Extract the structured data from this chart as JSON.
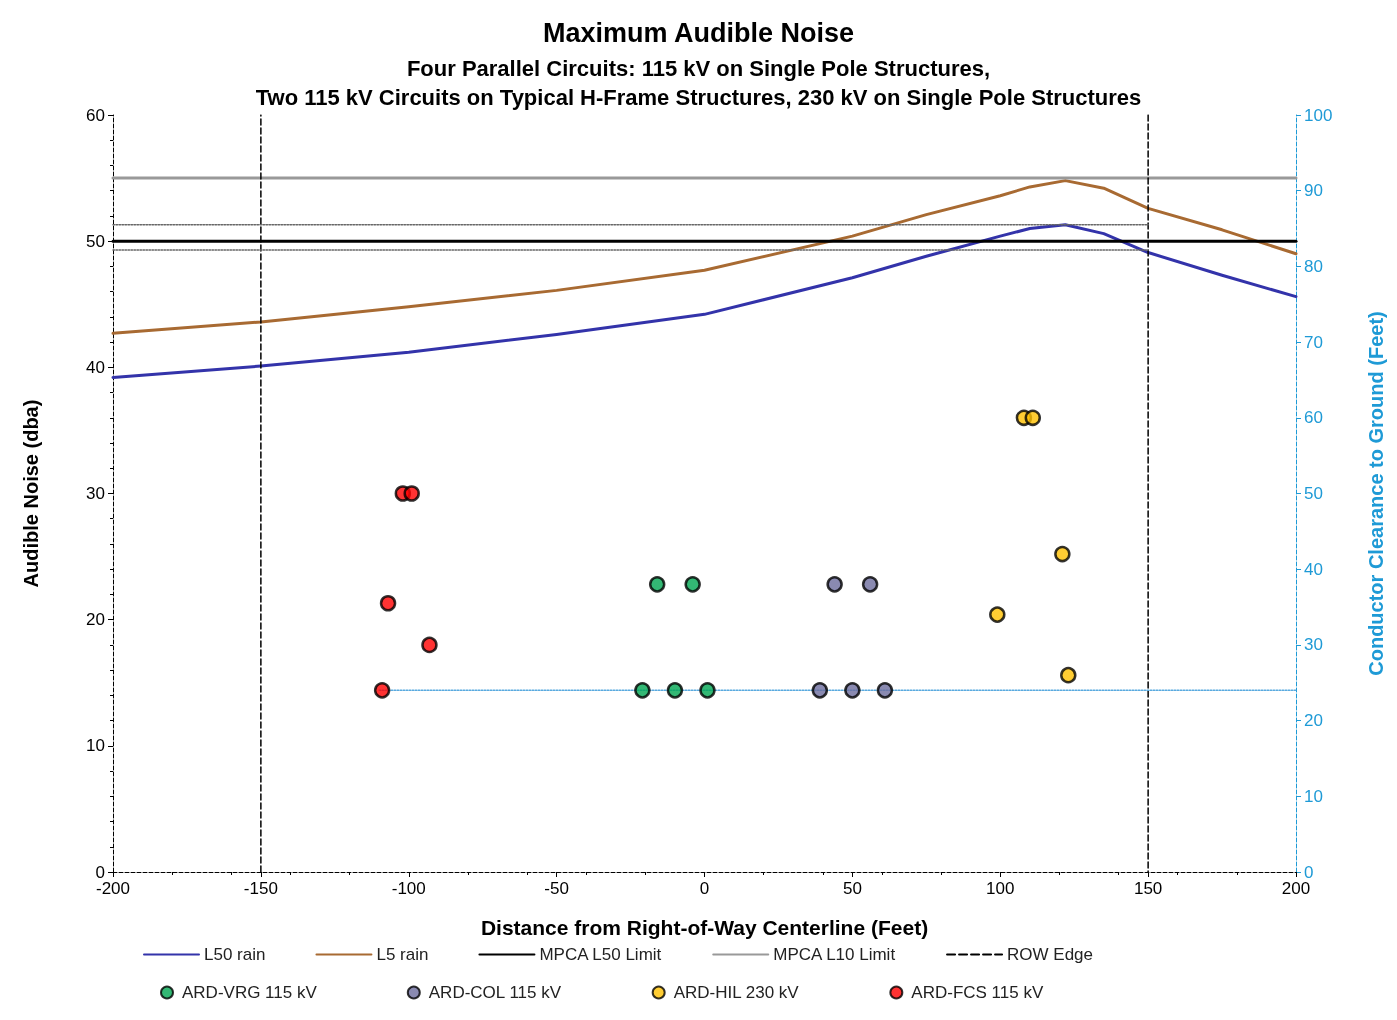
{
  "chart_data": {
    "type": "line",
    "title": "Maximum Audible Noise",
    "subtitle": "Four Parallel Circuits: 115 kV on Single Pole Structures,\nTwo 115 kV Circuits on Typical H-Frame Structures, 230 kV on Single Pole Structures",
    "xlabel": "Distance from Right-of-Way Centerline (Feet)",
    "ylabel": "Audible Noise (dba)",
    "y2label": "Conductor Clearance to Ground (Feet)",
    "xlim": [
      -200,
      200
    ],
    "xticks": [
      -200,
      -150,
      -100,
      -50,
      0,
      50,
      100,
      150,
      200
    ],
    "ylim": [
      0,
      60
    ],
    "yticks": [
      0,
      10,
      20,
      30,
      40,
      50,
      60
    ],
    "y2lim": [
      0,
      100
    ],
    "y2ticks": [
      0,
      10,
      20,
      30,
      40,
      50,
      60,
      70,
      80,
      90,
      100
    ],
    "grid": false,
    "legend": "bottom",
    "marker": "none",
    "line_style": "solid",
    "series": [
      {
        "name": "L50 rain",
        "color": "#3333aa",
        "x": [
          -200,
          -150,
          -100,
          -50,
          0,
          50,
          75,
          100,
          110,
          122,
          135,
          150,
          175,
          200
        ],
        "values": [
          39.2,
          40.1,
          41.2,
          42.6,
          44.2,
          47.1,
          48.8,
          50.4,
          51.0,
          51.3,
          50.6,
          49.1,
          47.3,
          45.6
        ]
      },
      {
        "name": "L5 rain",
        "color": "#a86a32",
        "x": [
          -200,
          -150,
          -100,
          -50,
          0,
          50,
          75,
          100,
          110,
          122,
          135,
          150,
          175,
          200
        ],
        "values": [
          42.7,
          43.6,
          44.8,
          46.1,
          47.7,
          50.4,
          52.1,
          53.6,
          54.3,
          54.8,
          54.2,
          52.6,
          50.9,
          49.0
        ]
      },
      {
        "name": "MPCA L50 Limit",
        "color": "#000000",
        "x": [
          -200,
          200
        ],
        "values": [
          50,
          50
        ]
      },
      {
        "name": "MPCA L10 Limit",
        "color": "#999999",
        "x": [
          -200,
          200
        ],
        "values": [
          55,
          55
        ]
      },
      {
        "name": "ROW Edge",
        "color": "#000000",
        "line_style": "dashed",
        "x": [
          -150,
          -150,
          0,
          150,
          150
        ],
        "values": [
          0,
          60,
          null,
          60,
          0
        ]
      },
      {
        "color": "#666666",
        "line_style": "dotted",
        "x": [
          -200,
          150
        ],
        "values": [
          51.3,
          51.3
        ]
      },
      {
        "color": "#666666",
        "line_style": "dotted",
        "x": [
          -200,
          150
        ],
        "values": [
          49.3,
          49.3
        ]
      },
      {
        "color": "#5aaadf",
        "line_style": "dotted",
        "axis": "y2",
        "x": [
          -110,
          200
        ],
        "values": [
          24,
          24
        ]
      },
      {
        "name": "ARD-VRG 115 kV",
        "type": "scatter",
        "marker": "circle",
        "axis": "y2",
        "color": "#00a651",
        "x": [
          -16,
          -4,
          -21,
          -10,
          1
        ],
        "values": [
          38,
          38,
          24,
          24,
          24
        ]
      },
      {
        "name": "ARD-COL 115 kV",
        "type": "scatter",
        "marker": "circle",
        "axis": "y2",
        "color": "#6d6d9e",
        "x": [
          44,
          56,
          39,
          50,
          61
        ],
        "values": [
          38,
          38,
          24,
          24,
          24
        ]
      },
      {
        "name": "ARD-HIL 230 kV",
        "type": "scatter",
        "marker": "circle",
        "axis": "y2",
        "color": "#ffc000",
        "x": [
          108,
          111,
          121,
          99,
          123
        ],
        "values": [
          60,
          60,
          42,
          34,
          26
        ]
      },
      {
        "name": "ARD-FCS 115 kV",
        "type": "scatter",
        "marker": "circle",
        "axis": "y2",
        "color": "#ff0000",
        "x": [
          -102,
          -99,
          -107,
          -93,
          -109
        ],
        "values": [
          50,
          50,
          35.5,
          30,
          24
        ]
      }
    ]
  }
}
